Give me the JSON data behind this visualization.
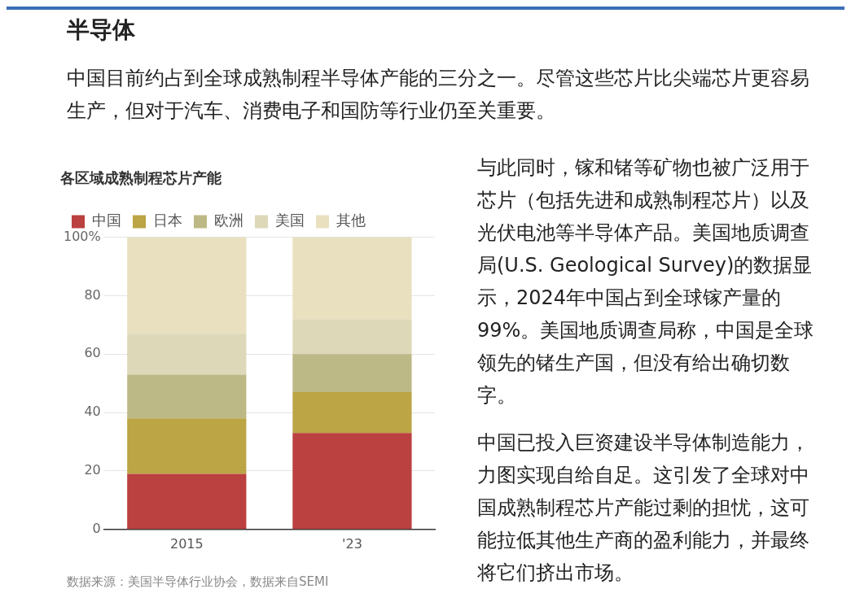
{
  "chart_data": {
    "type": "bar",
    "title": "半导体",
    "subtitle": "中国目前约占到全球成熟制程半导体产能的三分之一。尽管这些芯片比尖端芯片更容易生产，但对于汽车、消费电子和国防等行业仍至关重要。",
    "annotations": [
      "各区域成熟制程芯片产能",
      "数据来源：美国半导体行业协会，数据来自SEMI",
      "与此同时，镓和锗等矿物也被广泛用于芯片（包括先进和成熟制程芯片）以及光伏电池等半导体产品。美国地质调查局(U.S. Geological Survey)的数据显示，2024年中国占到全球镓产量的99%。美国地质调查局称，中国是全球领先的锗生产国，但没有给出确切数字。",
      "中国已投入巨资建设半导体制造能力，力图实现自给自足。这引发了全球对中国成熟制程芯片产能过剩的担忧，这可能拉低其他生产商的盈利能力，并最终将它们挤出市场。"
    ],
    "categories": [
      "2015",
      "'23"
    ],
    "stacked": true,
    "legend": "top left",
    "grid": "y",
    "ylim": [
      0,
      100
    ],
    "yticks": [
      0,
      20,
      40,
      60,
      80,
      {
        "value": 100,
        "label": "100%"
      }
    ],
    "series": [
      {
        "name": "中国",
        "color": "#bb4040",
        "values": [
          19,
          33
        ]
      },
      {
        "name": "日本",
        "color": "#bba544",
        "values": [
          19,
          14
        ]
      },
      {
        "name": "欧洲",
        "color": "#bdb986",
        "values": [
          15,
          13
        ]
      },
      {
        "name": "美国",
        "color": "#ddd8b8",
        "values": [
          14,
          12
        ]
      },
      {
        "name": "其他",
        "color": "#e9e0c0",
        "values": [
          33,
          28
        ]
      }
    ]
  }
}
